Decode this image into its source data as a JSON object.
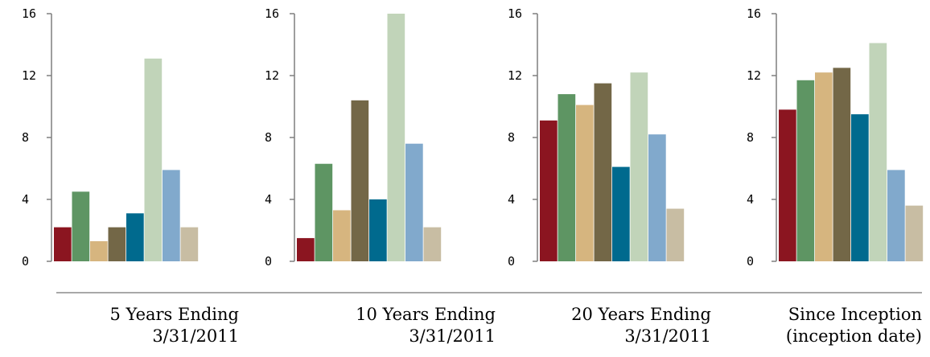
{
  "chart_data": [
    {
      "type": "bar",
      "ylim": [
        0,
        16
      ],
      "yticks": [
        "0",
        "4",
        "8",
        "12",
        "16"
      ],
      "caption": [
        "5 Years Ending",
        "3/31/2011"
      ],
      "values": [
        2.2,
        4.5,
        1.3,
        2.2,
        3.1,
        13.1,
        5.9,
        2.2
      ]
    },
    {
      "type": "bar",
      "ylim": [
        0,
        16
      ],
      "yticks": [
        "0",
        "4",
        "8",
        "12",
        "16"
      ],
      "caption": [
        "10 Years Ending",
        "3/31/2011"
      ],
      "values": [
        1.5,
        6.3,
        3.3,
        10.4,
        4.0,
        16.0,
        7.6,
        2.2
      ]
    },
    {
      "type": "bar",
      "ylim": [
        0,
        16
      ],
      "yticks": [
        "0",
        "4",
        "8",
        "12",
        "16"
      ],
      "caption": [
        "20 Years Ending",
        "3/31/2011"
      ],
      "values": [
        9.1,
        10.8,
        10.1,
        11.5,
        6.1,
        12.2,
        8.2,
        3.4
      ]
    },
    {
      "type": "bar",
      "ylim": [
        0,
        16
      ],
      "yticks": [
        "0",
        "4",
        "8",
        "12",
        "16"
      ],
      "caption": [
        "Since Inception",
        "(inception date)"
      ],
      "values": [
        9.8,
        11.7,
        12.2,
        12.5,
        9.5,
        14.1,
        5.9,
        3.6
      ]
    }
  ],
  "bar_colors": [
    "#8b1520",
    "#5e9563",
    "#d6b57f",
    "#736747",
    "#006a8e",
    "#c1d4b9",
    "#81a9cc",
    "#c8bda3"
  ]
}
